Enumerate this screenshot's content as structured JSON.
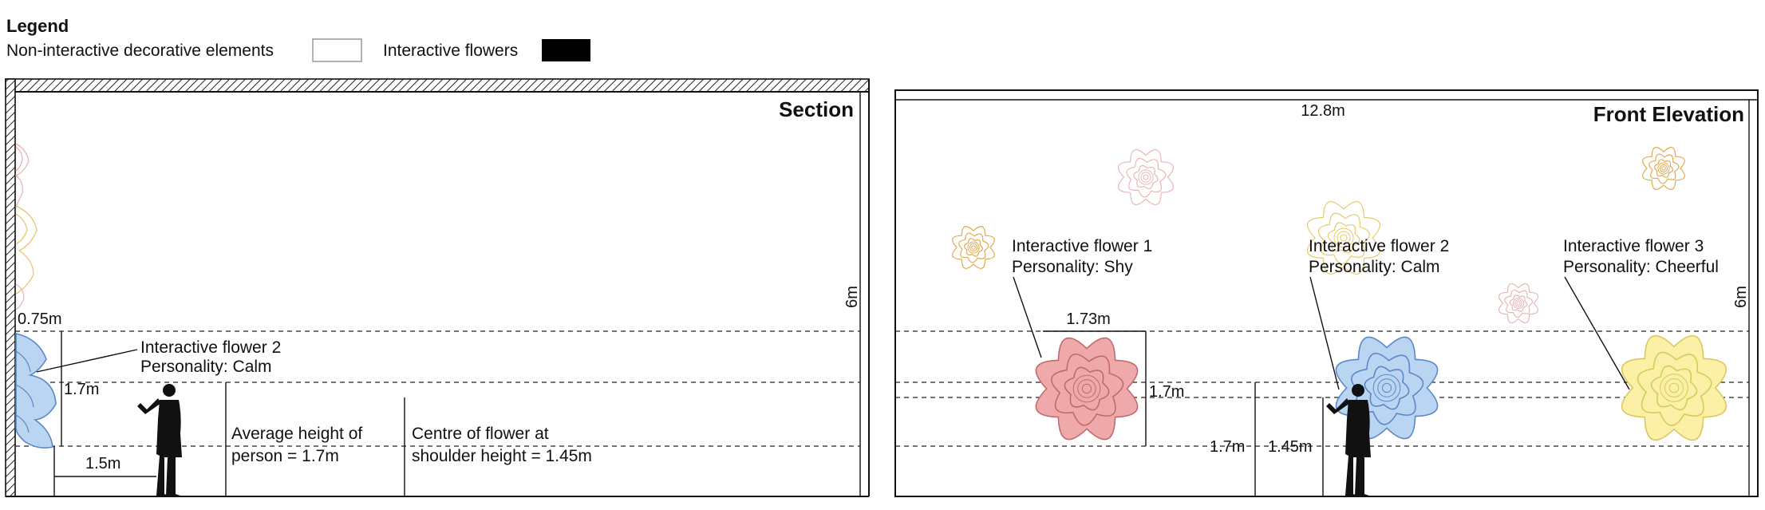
{
  "legend": {
    "title": "Legend",
    "decorative_label": "Non-interactive decorative elements",
    "interactive_label": "Interactive flowers"
  },
  "section": {
    "title": "Section",
    "height_label": "6m",
    "wall_offset_label": "0.75m",
    "flower_height_label": "1.7m",
    "distance_label": "1.5m",
    "flower_label_line1": "Interactive flower 2",
    "flower_label_line2": "Personality: Calm",
    "person_note_line1": "Average height of",
    "person_note_line2": "person = 1.7m",
    "centre_note_line1": "Centre of flower at",
    "centre_note_line2": "shoulder height = 1.45m"
  },
  "elevation": {
    "title": "Front Elevation",
    "width_label": "12.8m",
    "height_label": "6m",
    "flower_width_label": "1.73m",
    "flower_height_label": "1.7m",
    "person_height_label": "1.7m",
    "centre_height_label": "1.45m",
    "flower1_line1": "Interactive flower 1",
    "flower1_line2": "Personality: Shy",
    "flower2_line1": "Interactive flower 2",
    "flower2_line2": "Personality: Calm",
    "flower3_line1": "Interactive flower 3",
    "flower3_line2": "Personality: Cheerful"
  },
  "colors": {
    "shy": "#efa9aa",
    "calm": "#b9d5f2",
    "cheerful": "#fbf0a6",
    "deco_pink": "#e8b6b8",
    "deco_yellow": "#e8c96a",
    "deco_orange": "#e3a950"
  }
}
